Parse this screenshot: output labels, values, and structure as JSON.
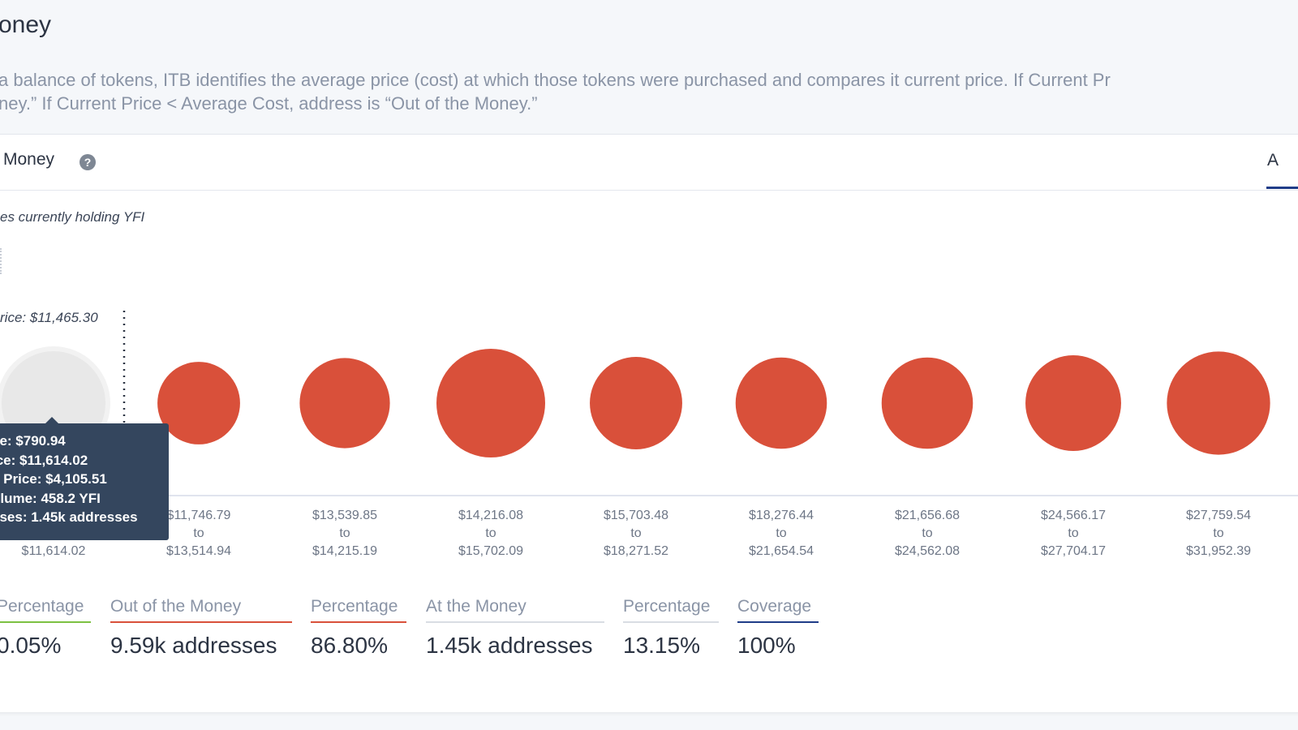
{
  "header": {
    "title": "oney",
    "description_line1": "a balance of tokens, ITB identifies the average price (cost) at which those tokens were purchased and compares it current price. If Current Pr",
    "description_line2": "ney.” If Current Price < Average Cost, address is “Out of the Money.”"
  },
  "card": {
    "title": "Money",
    "help_icon": "question-circle-icon",
    "right_tab": "A",
    "subtitle": "es currently holding YFI"
  },
  "chart_data": {
    "type": "bubble",
    "current_price_label": "rice: $11,465.30",
    "colors": {
      "out": "#d9503a",
      "at": "#e8e8e8",
      "axis": "#d5dce8"
    },
    "bubbles": [
      {
        "range_from": "",
        "range_to": "$11,614.02",
        "status": "at",
        "relative_size": 1.0
      },
      {
        "range_from": "$11,746.79",
        "range_to": "$13,514.94",
        "status": "out",
        "relative_size": 0.76
      },
      {
        "range_from": "$13,539.85",
        "range_to": "$14,215.19",
        "status": "out",
        "relative_size": 0.83
      },
      {
        "range_from": "$14,216.08",
        "range_to": "$15,702.09",
        "status": "out",
        "relative_size": 1.0
      },
      {
        "range_from": "$15,703.48",
        "range_to": "$18,271.52",
        "status": "out",
        "relative_size": 0.85
      },
      {
        "range_from": "$18,276.44",
        "range_to": "$21,654.54",
        "status": "out",
        "relative_size": 0.84
      },
      {
        "range_from": "$21,656.68",
        "range_to": "$24,562.08",
        "status": "out",
        "relative_size": 0.84
      },
      {
        "range_from": "$24,566.17",
        "range_to": "$27,704.17",
        "status": "out",
        "relative_size": 0.88
      },
      {
        "range_from": "$27,759.54",
        "range_to": "$31,952.39",
        "status": "out",
        "relative_size": 0.95
      }
    ],
    "range_connector": "to"
  },
  "tooltip": {
    "rows": [
      {
        "key": "ce:",
        "value": "$790.94"
      },
      {
        "key": "ice:",
        "value": "$11,614.02"
      },
      {
        "key": "e Price:",
        "value": "$4,105.51"
      },
      {
        "key": "olume:",
        "value": "458.2 YFI"
      },
      {
        "key": "sses:",
        "value": "1.45k addresses"
      }
    ]
  },
  "stats": [
    {
      "label": "Percentage",
      "value": "0.05%",
      "color": "#7cc142"
    },
    {
      "label": "Out of the Money",
      "value": "9.59k addresses",
      "color": "#d9503a"
    },
    {
      "label": "Percentage",
      "value": "86.80%",
      "color": "#d9503a"
    },
    {
      "label": "At the Money",
      "value": "1.45k addresses",
      "color": "#d9dde3"
    },
    {
      "label": "Percentage",
      "value": "13.15%",
      "color": "#d9dde3"
    },
    {
      "label": "Coverage",
      "value": "100%",
      "color": "#1f3c88"
    }
  ]
}
